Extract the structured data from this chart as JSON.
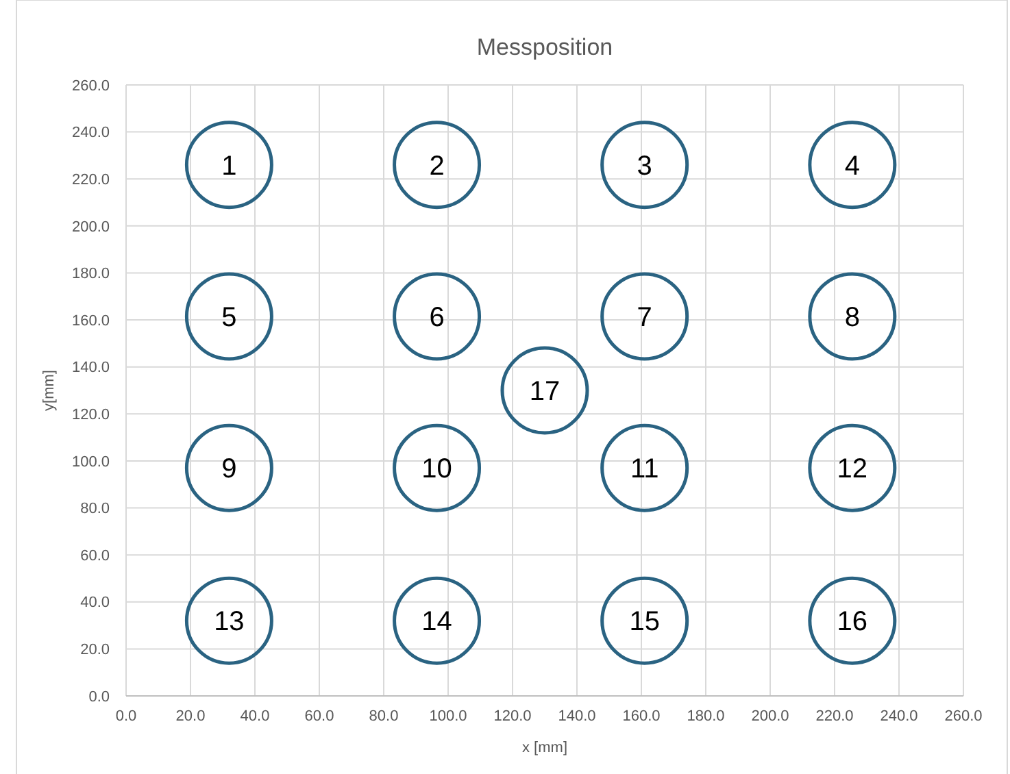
{
  "chart_data": {
    "type": "scatter",
    "title": "Messposition",
    "xlabel": "x [mm]",
    "ylabel": "y[mm]",
    "x": [
      32,
      96.5,
      161,
      225.5,
      32,
      96.5,
      161,
      225.5,
      32,
      96.5,
      161,
      225.5,
      32,
      96.5,
      161,
      225.5,
      130
    ],
    "series": [
      {
        "color": "#2a6382",
        "values": [
          226,
          226,
          226,
          226,
          161.5,
          161.5,
          161.5,
          161.5,
          97,
          97,
          97,
          97,
          32,
          32,
          32,
          32,
          130
        ]
      }
    ],
    "annotations": [
      {
        "text": "1",
        "x": 32,
        "y": 226
      },
      {
        "text": "2",
        "x": 96.5,
        "y": 226
      },
      {
        "text": "3",
        "x": 161,
        "y": 226
      },
      {
        "text": "4",
        "x": 225.5,
        "y": 226
      },
      {
        "text": "5",
        "x": 32,
        "y": 161.5
      },
      {
        "text": "6",
        "x": 96.5,
        "y": 161.5
      },
      {
        "text": "7",
        "x": 161,
        "y": 161.5
      },
      {
        "text": "8",
        "x": 225.5,
        "y": 161.5
      },
      {
        "text": "9",
        "x": 32,
        "y": 97
      },
      {
        "text": "10",
        "x": 96.5,
        "y": 97
      },
      {
        "text": "11",
        "x": 161,
        "y": 97
      },
      {
        "text": "12",
        "x": 225.5,
        "y": 97
      },
      {
        "text": "13",
        "x": 32,
        "y": 32
      },
      {
        "text": "14",
        "x": 96.5,
        "y": 32
      },
      {
        "text": "15",
        "x": 161,
        "y": 32
      },
      {
        "text": "16",
        "x": 225.5,
        "y": 32
      },
      {
        "text": "17",
        "x": 130,
        "y": 130
      }
    ],
    "xlim": [
      0,
      260
    ],
    "ylim": [
      0,
      260
    ],
    "xticks": [
      {
        "value": 0,
        "label": "0.0"
      },
      {
        "value": 20,
        "label": "20.0"
      },
      {
        "value": 40,
        "label": "40.0"
      },
      {
        "value": 60,
        "label": "60.0"
      },
      {
        "value": 80,
        "label": "80.0"
      },
      {
        "value": 100,
        "label": "100.0"
      },
      {
        "value": 120,
        "label": "120.0"
      },
      {
        "value": 140,
        "label": "140.0"
      },
      {
        "value": 160,
        "label": "160.0"
      },
      {
        "value": 180,
        "label": "180.0"
      },
      {
        "value": 200,
        "label": "200.0"
      },
      {
        "value": 220,
        "label": "220.0"
      },
      {
        "value": 240,
        "label": "240.0"
      },
      {
        "value": 260,
        "label": "260.0"
      }
    ],
    "yticks": [
      {
        "value": 0,
        "label": "0.0"
      },
      {
        "value": 20,
        "label": "20.0"
      },
      {
        "value": 40,
        "label": "40.0"
      },
      {
        "value": 60,
        "label": "60.0"
      },
      {
        "value": 80,
        "label": "80.0"
      },
      {
        "value": 100,
        "label": "100.0"
      },
      {
        "value": 120,
        "label": "120.0"
      },
      {
        "value": 140,
        "label": "140.0"
      },
      {
        "value": 160,
        "label": "160.0"
      },
      {
        "value": 180,
        "label": "180.0"
      },
      {
        "value": 200,
        "label": "200.0"
      },
      {
        "value": 220,
        "label": "220.0"
      },
      {
        "value": 240,
        "label": "240.0"
      },
      {
        "value": 260,
        "label": "260.0"
      }
    ],
    "grid": true,
    "marker": "circle"
  }
}
